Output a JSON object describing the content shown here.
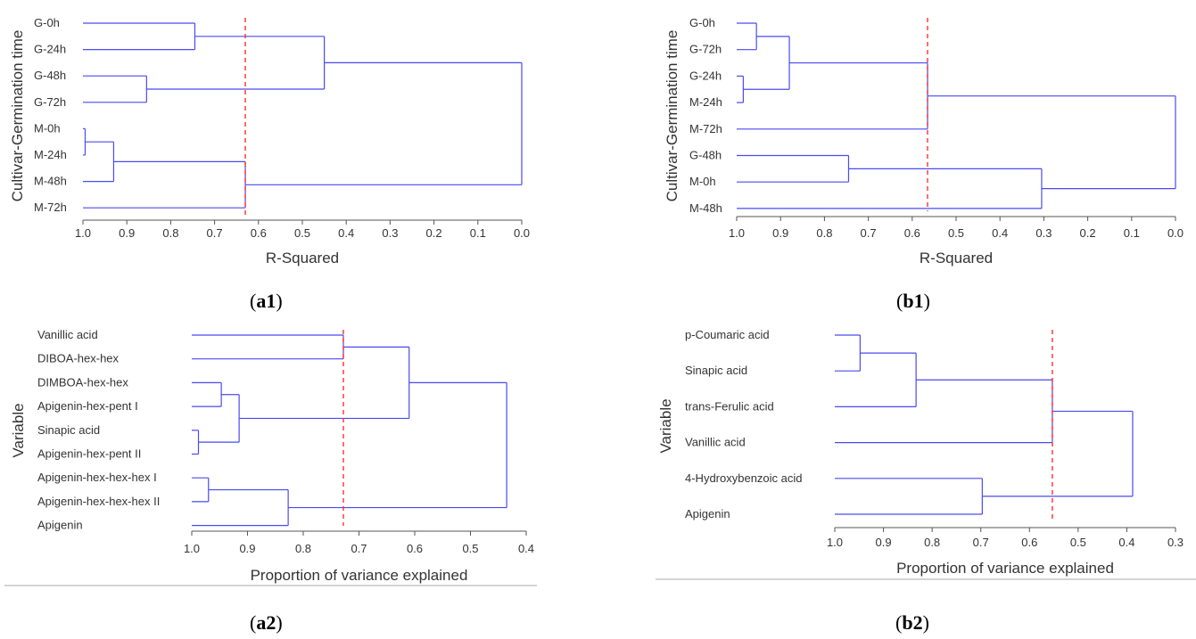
{
  "colors": {
    "dendrogram_line": "#4a4af0",
    "cutoff_line": "#ff3030",
    "axis": "#555555",
    "text": "#333333",
    "separator": "#999999"
  },
  "chart_data": [
    {
      "id": "a1",
      "type": "dendrogram",
      "panel_label": "a1",
      "ylabel": "Cultivar-Germination time",
      "xlabel": "R-Squared",
      "xlim": [
        1.0,
        0.0
      ],
      "ticks": [
        "1.0",
        "0.9",
        "0.8",
        "0.7",
        "0.6",
        "0.5",
        "0.4",
        "0.3",
        "0.2",
        "0.1",
        "0.0"
      ],
      "tick_values": [
        1.0,
        0.9,
        0.8,
        0.7,
        0.6,
        0.5,
        0.4,
        0.3,
        0.2,
        0.1,
        0.0
      ],
      "cutoff": 0.63,
      "leaves": [
        "G-0h",
        "G-24h",
        "G-48h",
        "G-72h",
        "M-0h",
        "M-24h",
        "M-48h",
        "M-72h"
      ],
      "merges": [
        {
          "a": "L0",
          "b": "L1",
          "height": 0.745
        },
        {
          "a": "L2",
          "b": "L3",
          "height": 0.855
        },
        {
          "a": "N0",
          "b": "N1",
          "height": 0.45
        },
        {
          "a": "L4",
          "b": "L5",
          "height": 0.995
        },
        {
          "a": "N3",
          "b": "L6",
          "height": 0.93
        },
        {
          "a": "N4",
          "b": "L7",
          "height": 0.63
        },
        {
          "a": "N2",
          "b": "N5",
          "height": 0.0
        }
      ]
    },
    {
      "id": "b1",
      "type": "dendrogram",
      "panel_label": "b1",
      "ylabel": "Cultivar-Germination time",
      "xlabel": "R-Squared",
      "xlim": [
        1.0,
        0.0
      ],
      "ticks": [
        "1.0",
        "0.9",
        "0.8",
        "0.7",
        "0.6",
        "0.5",
        "0.4",
        "0.3",
        "0.2",
        "0.1",
        "0.0"
      ],
      "tick_values": [
        1.0,
        0.9,
        0.8,
        0.7,
        0.6,
        0.5,
        0.4,
        0.3,
        0.2,
        0.1,
        0.0
      ],
      "cutoff": 0.565,
      "leaves": [
        "G-0h",
        "G-72h",
        "G-24h",
        "M-24h",
        "M-72h",
        "G-48h",
        "M-0h",
        "M-48h"
      ],
      "merges": [
        {
          "a": "L0",
          "b": "L1",
          "height": 0.955
        },
        {
          "a": "L2",
          "b": "L3",
          "height": 0.985
        },
        {
          "a": "N0",
          "b": "N1",
          "height": 0.88
        },
        {
          "a": "N2",
          "b": "L4",
          "height": 0.565
        },
        {
          "a": "L5",
          "b": "L6",
          "height": 0.745
        },
        {
          "a": "N4",
          "b": "L7",
          "height": 0.305
        },
        {
          "a": "N3",
          "b": "N5",
          "height": 0.0
        }
      ]
    },
    {
      "id": "a2",
      "type": "dendrogram",
      "panel_label": "a2",
      "ylabel": "Variable",
      "xlabel": "Proportion of variance explained",
      "xlim": [
        1.0,
        0.4
      ],
      "ticks": [
        "1.0",
        "0.9",
        "0.8",
        "0.7",
        "0.6",
        "0.5",
        "0.4"
      ],
      "tick_values": [
        1.0,
        0.9,
        0.8,
        0.7,
        0.6,
        0.5,
        0.4
      ],
      "cutoff": 0.728,
      "leaves": [
        "Vanillic acid",
        "DIBOA-hex-hex",
        "DIMBOA-hex-hex",
        "Apigenin-hex-pent I",
        "Sinapic acid",
        "Apigenin-hex-pent II",
        "Apigenin-hex-hex-hex I",
        "Apigenin-hex-hex-hex II",
        "Apigenin"
      ],
      "merges": [
        {
          "a": "L0",
          "b": "L1",
          "height": 0.728
        },
        {
          "a": "L2",
          "b": "L3",
          "height": 0.947
        },
        {
          "a": "L4",
          "b": "L5",
          "height": 0.988
        },
        {
          "a": "N1",
          "b": "N2",
          "height": 0.915
        },
        {
          "a": "N0",
          "b": "N3",
          "height": 0.61
        },
        {
          "a": "L6",
          "b": "L7",
          "height": 0.97
        },
        {
          "a": "N5",
          "b": "L8",
          "height": 0.827
        },
        {
          "a": "N4",
          "b": "N6",
          "height": 0.435
        }
      ]
    },
    {
      "id": "b2",
      "type": "dendrogram",
      "panel_label": "b2",
      "ylabel": "Variable",
      "xlabel": "Proportion of variance explained",
      "xlim": [
        1.0,
        0.3
      ],
      "ticks": [
        "1.0",
        "0.9",
        "0.8",
        "0.7",
        "0.6",
        "0.5",
        "0.4",
        "0.3"
      ],
      "tick_values": [
        1.0,
        0.9,
        0.8,
        0.7,
        0.6,
        0.5,
        0.4,
        0.3
      ],
      "cutoff": 0.553,
      "leaves": [
        "p-Coumaric acid",
        "Sinapic acid",
        "trans-Ferulic acid",
        "Vanillic acid",
        "4-Hydroxybenzoic acid",
        "Apigenin"
      ],
      "merges": [
        {
          "a": "L0",
          "b": "L1",
          "height": 0.948
        },
        {
          "a": "N0",
          "b": "L2",
          "height": 0.833
        },
        {
          "a": "N1",
          "b": "L3",
          "height": 0.553
        },
        {
          "a": "L4",
          "b": "L5",
          "height": 0.697
        },
        {
          "a": "N2",
          "b": "N3",
          "height": 0.388
        }
      ]
    }
  ]
}
